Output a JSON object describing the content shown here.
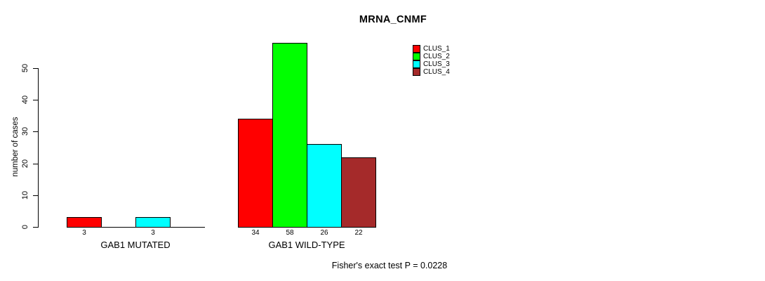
{
  "chart_data": {
    "type": "bar",
    "title": "MRNA_CNMF",
    "ylabel": "number of cases",
    "yticks": [
      0,
      10,
      20,
      30,
      40,
      50
    ],
    "ylim": [
      0,
      58
    ],
    "grid": false,
    "categories": [
      "GAB1 MUTATED",
      "GAB1 WILD-TYPE"
    ],
    "series": [
      {
        "name": "CLUS_1",
        "color": "#FF0000",
        "values": [
          3,
          34
        ]
      },
      {
        "name": "CLUS_2",
        "color": "#00FF00",
        "values": [
          0,
          58
        ]
      },
      {
        "name": "CLUS_3",
        "color": "#00FFFF",
        "values": [
          3,
          26
        ]
      },
      {
        "name": "CLUS_4",
        "color": "#A52A2A",
        "values": [
          0,
          22
        ]
      }
    ],
    "bar_value_labels": [
      [
        "3",
        "",
        "3",
        ""
      ],
      [
        "34",
        "58",
        "26",
        "22"
      ]
    ],
    "legend": {
      "position": "top-right",
      "entries": [
        {
          "label": "CLUS_1",
          "color": "#FF0000"
        },
        {
          "label": "CLUS_2",
          "color": "#00FF00"
        },
        {
          "label": "CLUS_3",
          "color": "#00FFFF"
        },
        {
          "label": "CLUS_4",
          "color": "#A52A2A"
        }
      ]
    },
    "annotation": "Fisher's exact test P = 0.0228",
    "axis_color": "#000000",
    "bar_border_color": "#000000",
    "background_color": "#FFFFFF"
  }
}
